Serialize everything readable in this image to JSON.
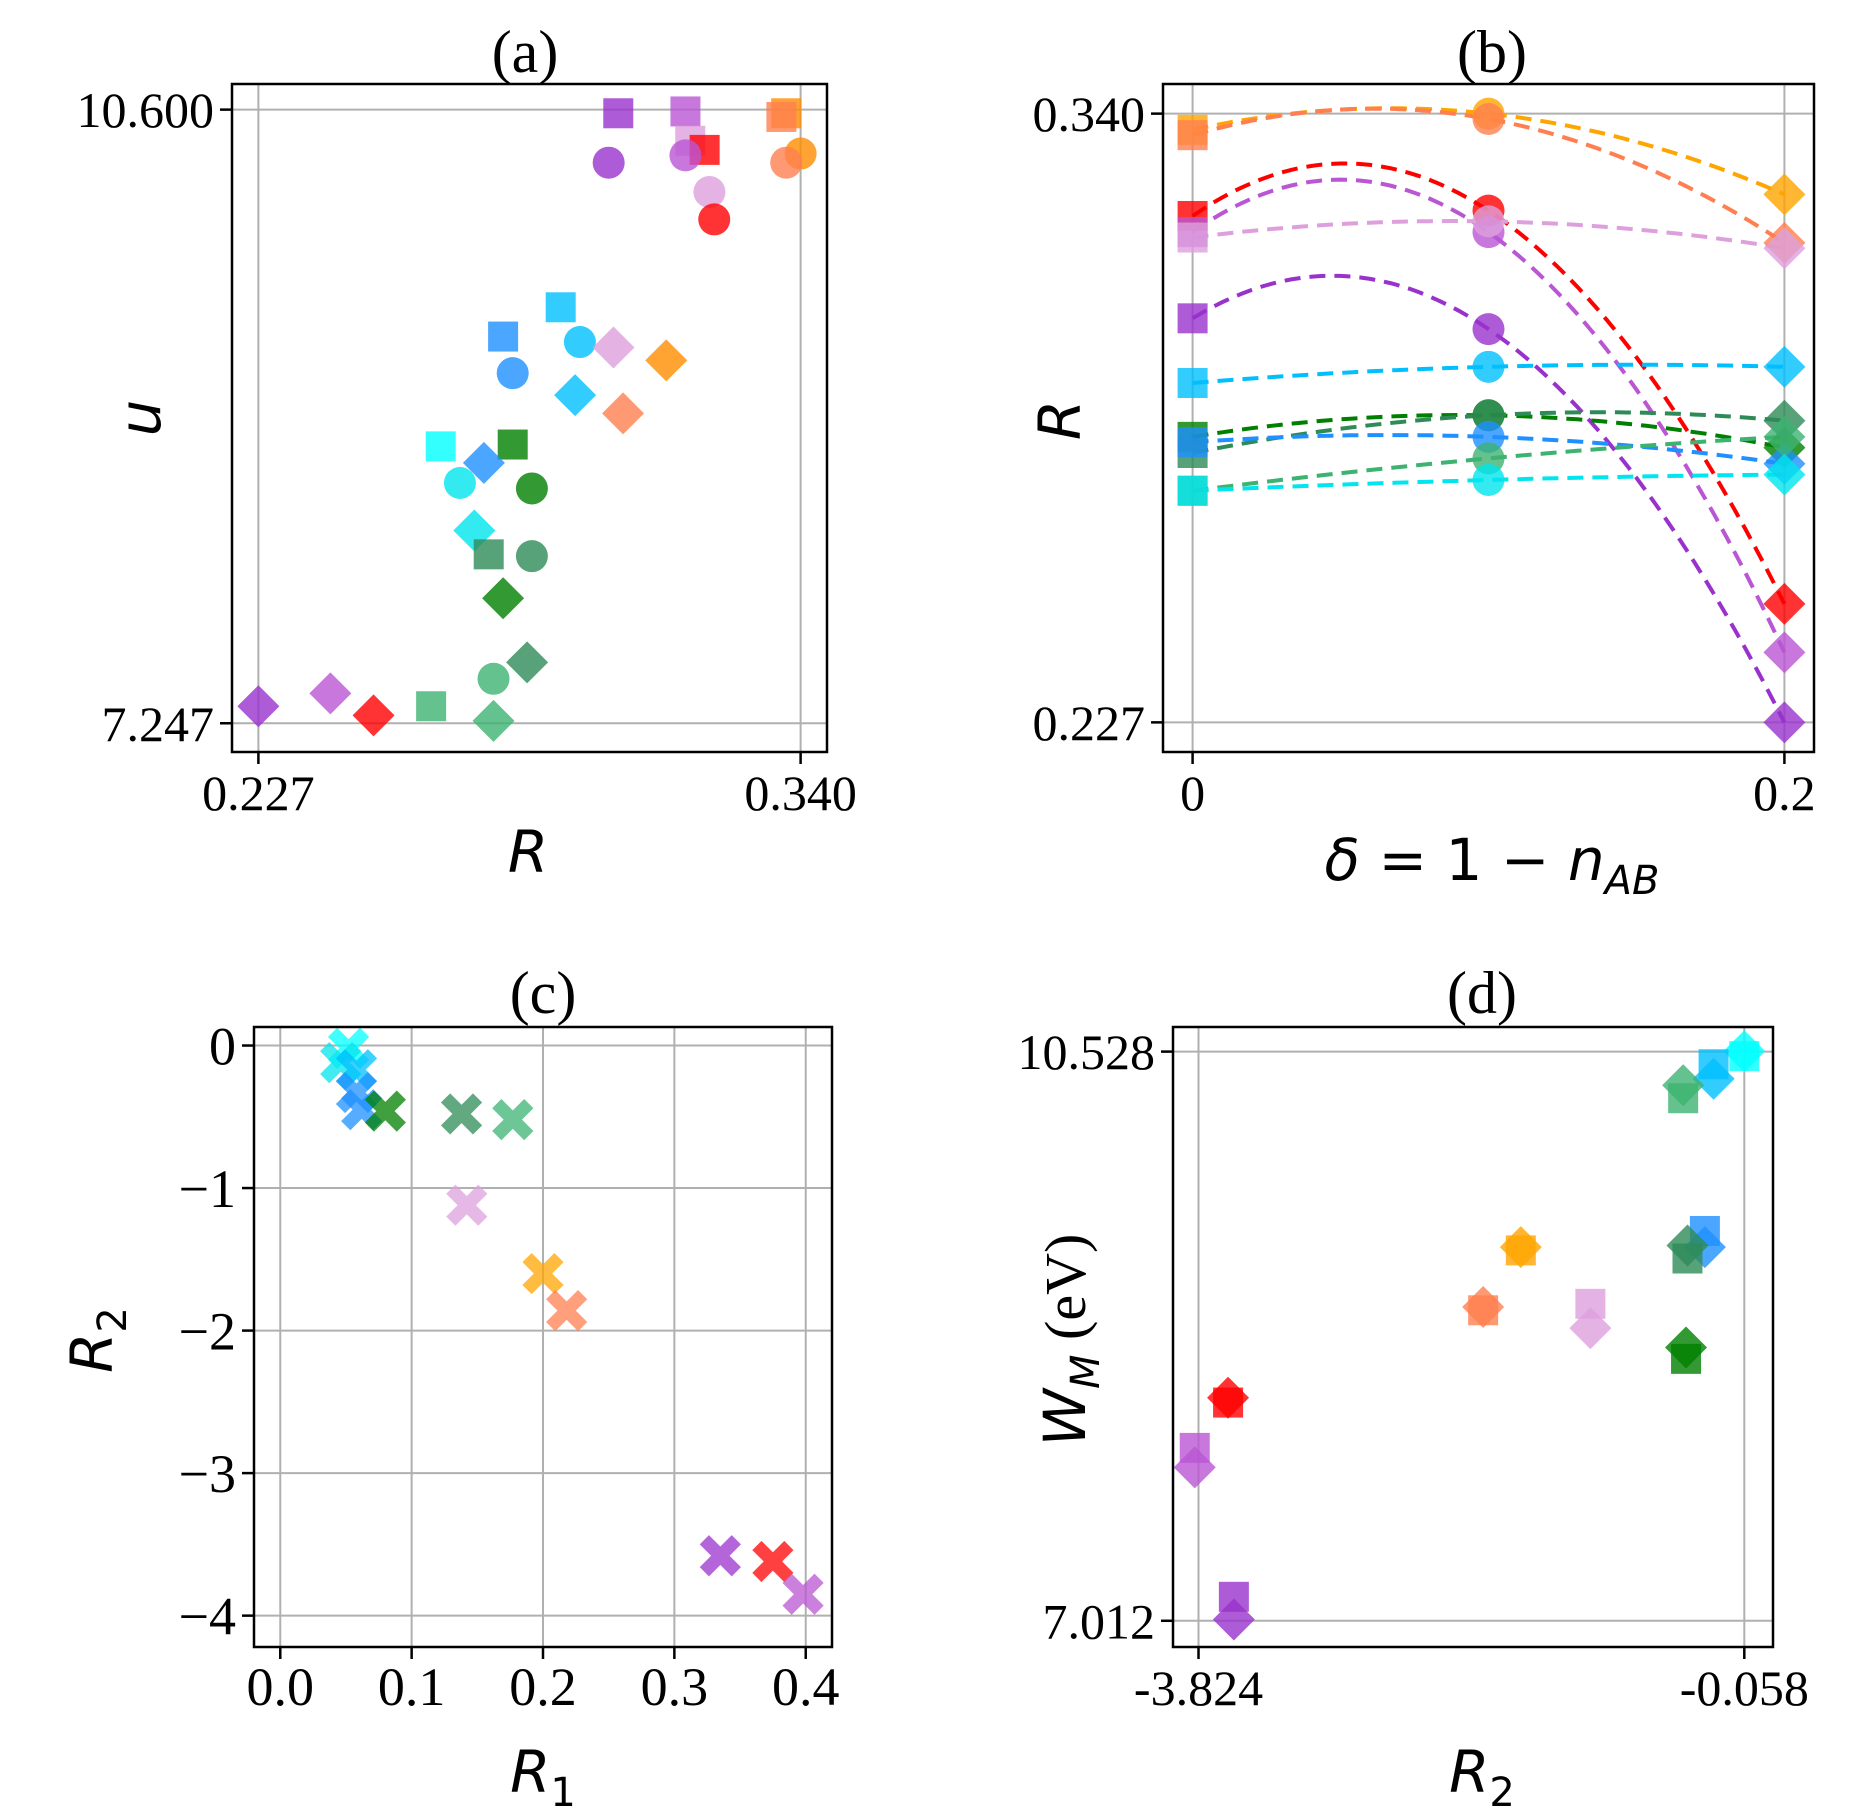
{
  "chart_data": [
    {
      "id": "a",
      "type": "scatter",
      "title": "(a)",
      "xlabel": "R",
      "ylabel": "u",
      "xlim": [
        0.2215,
        0.3455
      ],
      "ylim": [
        7.09,
        10.74
      ],
      "xticks": [
        {
          "value": 0.227,
          "label": "0.227"
        },
        {
          "value": 0.34,
          "label": "0.340"
        }
      ],
      "yticks": [
        {
          "value": 7.247,
          "label": "7.247"
        },
        {
          "value": 10.6,
          "label": "10.600"
        }
      ],
      "grid": true,
      "points": [
        {
          "x": 0.302,
          "y": 10.58,
          "marker": "square",
          "color": "#9932cc"
        },
        {
          "x": 0.316,
          "y": 10.59,
          "marker": "square",
          "color": "#ba55d3"
        },
        {
          "x": 0.337,
          "y": 10.58,
          "marker": "square",
          "color": "#ff8c00"
        },
        {
          "x": 0.336,
          "y": 10.56,
          "marker": "square",
          "color": "#ff7f50"
        },
        {
          "x": 0.317,
          "y": 10.43,
          "marker": "square",
          "color": "#dda0dd"
        },
        {
          "x": 0.32,
          "y": 10.38,
          "marker": "square",
          "color": "#ff0000"
        },
        {
          "x": 0.3,
          "y": 10.31,
          "marker": "circle",
          "color": "#9932cc"
        },
        {
          "x": 0.316,
          "y": 10.35,
          "marker": "circle",
          "color": "#ba55d3"
        },
        {
          "x": 0.34,
          "y": 10.36,
          "marker": "circle",
          "color": "#ff8c00"
        },
        {
          "x": 0.337,
          "y": 10.31,
          "marker": "circle",
          "color": "#ff7f50"
        },
        {
          "x": 0.321,
          "y": 10.15,
          "marker": "circle",
          "color": "#dda0dd"
        },
        {
          "x": 0.322,
          "y": 10.0,
          "marker": "circle",
          "color": "#ff0000"
        },
        {
          "x": 0.29,
          "y": 9.52,
          "marker": "square",
          "color": "#00bfff"
        },
        {
          "x": 0.278,
          "y": 9.36,
          "marker": "square",
          "color": "#1e90ff"
        },
        {
          "x": 0.294,
          "y": 9.33,
          "marker": "circle",
          "color": "#00bfff"
        },
        {
          "x": 0.28,
          "y": 9.16,
          "marker": "circle",
          "color": "#1e90ff"
        },
        {
          "x": 0.301,
          "y": 9.3,
          "marker": "diamond",
          "color": "#dda0dd"
        },
        {
          "x": 0.312,
          "y": 9.23,
          "marker": "diamond",
          "color": "#ff8c00"
        },
        {
          "x": 0.293,
          "y": 9.04,
          "marker": "diamond",
          "color": "#00bfff"
        },
        {
          "x": 0.303,
          "y": 8.94,
          "marker": "diamond",
          "color": "#ff7f50"
        },
        {
          "x": 0.265,
          "y": 8.76,
          "marker": "square",
          "color": "#00ffff"
        },
        {
          "x": 0.28,
          "y": 8.77,
          "marker": "square",
          "color": "#008000"
        },
        {
          "x": 0.274,
          "y": 8.67,
          "marker": "diamond",
          "color": "#1e90ff"
        },
        {
          "x": 0.269,
          "y": 8.56,
          "marker": "circle",
          "color": "#00e5ee"
        },
        {
          "x": 0.284,
          "y": 8.53,
          "marker": "circle",
          "color": "#008000"
        },
        {
          "x": 0.272,
          "y": 8.3,
          "marker": "diamond",
          "color": "#00e5ee"
        },
        {
          "x": 0.275,
          "y": 8.17,
          "marker": "square",
          "color": "#2e8b57"
        },
        {
          "x": 0.284,
          "y": 8.16,
          "marker": "circle",
          "color": "#2e8b57"
        },
        {
          "x": 0.278,
          "y": 7.93,
          "marker": "diamond",
          "color": "#008000"
        },
        {
          "x": 0.283,
          "y": 7.58,
          "marker": "diamond",
          "color": "#2e8b57"
        },
        {
          "x": 0.276,
          "y": 7.49,
          "marker": "circle",
          "color": "#3cb371"
        },
        {
          "x": 0.263,
          "y": 7.34,
          "marker": "square",
          "color": "#3cb371"
        },
        {
          "x": 0.276,
          "y": 7.26,
          "marker": "diamond",
          "color": "#3cb371"
        },
        {
          "x": 0.227,
          "y": 7.34,
          "marker": "diamond",
          "color": "#9932cc"
        },
        {
          "x": 0.242,
          "y": 7.41,
          "marker": "diamond",
          "color": "#ba55d3"
        },
        {
          "x": 0.251,
          "y": 7.29,
          "marker": "diamond",
          "color": "#ff0000"
        }
      ]
    },
    {
      "id": "b",
      "type": "line",
      "title": "(b)",
      "xlabel": "δ = 1 − n_AB",
      "ylabel": "R",
      "xlim": [
        -0.01,
        0.21
      ],
      "ylim": [
        0.2215,
        0.3455
      ],
      "xticks": [
        {
          "value": 0,
          "label": "0"
        },
        {
          "value": 0.2,
          "label": "0.2"
        }
      ],
      "yticks": [
        {
          "value": 0.227,
          "label": "0.227"
        },
        {
          "value": 0.34,
          "label": "0.340"
        }
      ],
      "grid": true,
      "x": [
        0,
        0.1,
        0.2
      ],
      "series": [
        {
          "color": "#ffa500",
          "values": [
            0.337,
            0.34,
            0.325
          ]
        },
        {
          "color": "#ff7f50",
          "values": [
            0.336,
            0.339,
            0.316
          ]
        },
        {
          "color": "#ff0000",
          "values": [
            0.321,
            0.322,
            0.249
          ]
        },
        {
          "color": "#ba55d3",
          "values": [
            0.318,
            0.318,
            0.24
          ]
        },
        {
          "color": "#dda0dd",
          "values": [
            0.317,
            0.32,
            0.315
          ]
        },
        {
          "color": "#9932cc",
          "values": [
            0.302,
            0.3,
            0.227
          ]
        },
        {
          "color": "#00bfff",
          "values": [
            0.29,
            0.293,
            0.293
          ]
        },
        {
          "color": "#008000",
          "values": [
            0.28,
            0.284,
            0.278
          ]
        },
        {
          "color": "#2e8b57",
          "values": [
            0.277,
            0.284,
            0.283
          ]
        },
        {
          "color": "#1e90ff",
          "values": [
            0.279,
            0.28,
            0.275
          ]
        },
        {
          "color": "#3cb371",
          "values": [
            0.27,
            0.276,
            0.28
          ]
        },
        {
          "color": "#00e5ee",
          "values": [
            0.27,
            0.272,
            0.273
          ]
        }
      ]
    },
    {
      "id": "c",
      "type": "scatter",
      "title": "(c)",
      "xlabel": "R₁",
      "ylabel": "R₂",
      "xlim": [
        -0.02,
        0.42
      ],
      "ylim": [
        -4.22,
        0.13
      ],
      "xticks": [
        {
          "value": 0.0,
          "label": "0.0"
        },
        {
          "value": 0.1,
          "label": "0.1"
        },
        {
          "value": 0.2,
          "label": "0.2"
        },
        {
          "value": 0.3,
          "label": "0.3"
        },
        {
          "value": 0.4,
          "label": "0.4"
        }
      ],
      "yticks": [
        {
          "value": 0,
          "label": "0"
        },
        {
          "value": -1,
          "label": "−1"
        },
        {
          "value": -2,
          "label": "−2"
        },
        {
          "value": -3,
          "label": "−3"
        },
        {
          "value": -4,
          "label": "−4"
        }
      ],
      "grid": true,
      "points": [
        {
          "x": 0.052,
          "y": -0.02,
          "marker": "x",
          "color": "#00ffff"
        },
        {
          "x": 0.046,
          "y": -0.12,
          "marker": "x",
          "color": "#00e5ee"
        },
        {
          "x": 0.058,
          "y": -0.17,
          "marker": "x",
          "color": "#00bfff"
        },
        {
          "x": 0.058,
          "y": -0.33,
          "marker": "x",
          "color": "#1e90ff"
        },
        {
          "x": 0.062,
          "y": -0.45,
          "marker": "x",
          "color": "#1e90ff"
        },
        {
          "x": 0.08,
          "y": -0.46,
          "marker": "x",
          "color": "#008000"
        },
        {
          "x": 0.138,
          "y": -0.48,
          "marker": "x",
          "color": "#2e8b57"
        },
        {
          "x": 0.177,
          "y": -0.52,
          "marker": "x",
          "color": "#3cb371"
        },
        {
          "x": 0.142,
          "y": -1.12,
          "marker": "x",
          "color": "#dda0dd"
        },
        {
          "x": 0.2,
          "y": -1.6,
          "marker": "x",
          "color": "#ffa500"
        },
        {
          "x": 0.218,
          "y": -1.86,
          "marker": "x",
          "color": "#ff7f50"
        },
        {
          "x": 0.335,
          "y": -3.58,
          "marker": "x",
          "color": "#9932cc"
        },
        {
          "x": 0.375,
          "y": -3.62,
          "marker": "x",
          "color": "#ff0000"
        },
        {
          "x": 0.398,
          "y": -3.85,
          "marker": "x",
          "color": "#ba55d3"
        }
      ]
    },
    {
      "id": "d",
      "type": "scatter",
      "title": "(d)",
      "xlabel": "R₂",
      "ylabel": "W_M (eV)",
      "xlim": [
        -4.0,
        0.14
      ],
      "ylim": [
        6.85,
        10.68
      ],
      "xticks": [
        {
          "value": -3.824,
          "label": "-3.824"
        },
        {
          "value": -0.058,
          "label": "-0.058"
        }
      ],
      "yticks": [
        {
          "value": 7.012,
          "label": "7.012"
        },
        {
          "value": 10.528,
          "label": "10.528"
        }
      ],
      "grid": true,
      "points": [
        {
          "x": -0.058,
          "y": 10.5,
          "marker": "square",
          "color": "#00ffff"
        },
        {
          "x": -0.058,
          "y": 10.53,
          "marker": "diamond",
          "color": "#00ffff"
        },
        {
          "x": -0.27,
          "y": 10.45,
          "marker": "square",
          "color": "#00bfff"
        },
        {
          "x": -0.27,
          "y": 10.36,
          "marker": "diamond",
          "color": "#00bfff"
        },
        {
          "x": -0.48,
          "y": 10.24,
          "marker": "square",
          "color": "#3cb371"
        },
        {
          "x": -0.48,
          "y": 10.32,
          "marker": "diamond",
          "color": "#3cb371"
        },
        {
          "x": -0.33,
          "y": 9.42,
          "marker": "square",
          "color": "#1e90ff"
        },
        {
          "x": -0.33,
          "y": 9.32,
          "marker": "diamond",
          "color": "#1e90ff"
        },
        {
          "x": -0.45,
          "y": 9.25,
          "marker": "square",
          "color": "#2e8b57"
        },
        {
          "x": -0.45,
          "y": 9.33,
          "marker": "diamond",
          "color": "#2e8b57"
        },
        {
          "x": -0.46,
          "y": 8.63,
          "marker": "square",
          "color": "#008000"
        },
        {
          "x": -0.46,
          "y": 8.7,
          "marker": "diamond",
          "color": "#008000"
        },
        {
          "x": -1.6,
          "y": 9.3,
          "marker": "square",
          "color": "#ffa500"
        },
        {
          "x": -1.6,
          "y": 9.32,
          "marker": "diamond",
          "color": "#ffa500"
        },
        {
          "x": -1.86,
          "y": 8.93,
          "marker": "square",
          "color": "#ff7f50"
        },
        {
          "x": -1.86,
          "y": 8.95,
          "marker": "diamond",
          "color": "#ff7f50"
        },
        {
          "x": -1.12,
          "y": 8.97,
          "marker": "square",
          "color": "#dda0dd"
        },
        {
          "x": -1.12,
          "y": 8.82,
          "marker": "diamond",
          "color": "#dda0dd"
        },
        {
          "x": -3.62,
          "y": 8.36,
          "marker": "square",
          "color": "#ff0000"
        },
        {
          "x": -3.62,
          "y": 8.39,
          "marker": "diamond",
          "color": "#ff0000"
        },
        {
          "x": -3.85,
          "y": 8.08,
          "marker": "square",
          "color": "#ba55d3"
        },
        {
          "x": -3.85,
          "y": 7.96,
          "marker": "diamond",
          "color": "#ba55d3"
        },
        {
          "x": -3.58,
          "y": 7.16,
          "marker": "square",
          "color": "#9932cc"
        },
        {
          "x": -3.58,
          "y": 7.02,
          "marker": "diamond",
          "color": "#9932cc"
        }
      ]
    }
  ]
}
